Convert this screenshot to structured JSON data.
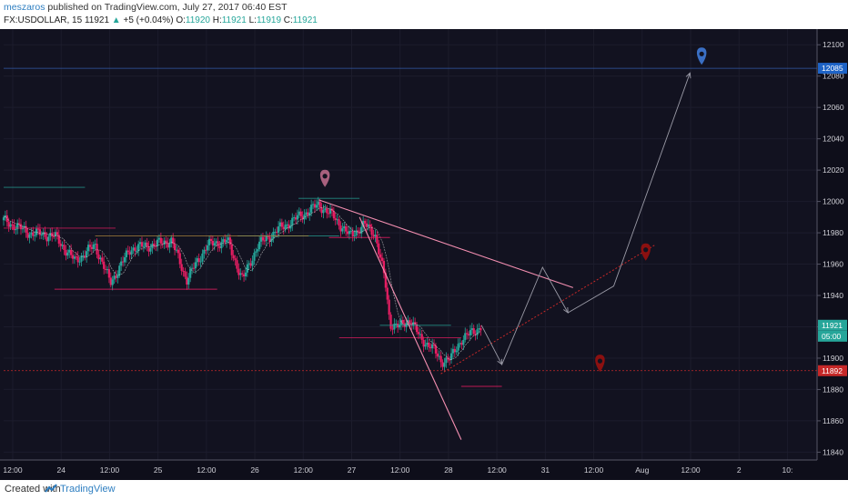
{
  "header": {
    "username": "meszaros",
    "published_text": " published on TradingView.com, July 27, 2017 06:40 EST",
    "symbol": "FX:USDOLLAR, 15",
    "last": "11921",
    "change_arrow": "▲",
    "change": "+5 (+0.04%)",
    "open_label": "O:",
    "open": "11920",
    "high_label": "H:",
    "high": "11921",
    "low_label": "L:",
    "low": "11919",
    "close_label": "C:",
    "close": "11921"
  },
  "footer": {
    "created_with": "Created with",
    "brand": "TradingView"
  },
  "colors": {
    "background": "#121220",
    "grid": "#1c1c2c",
    "candle_up": "#26a69a",
    "candle_down": "#e91e63",
    "triangle_line": "#f48fb1",
    "dotted_red": "#c62828",
    "price_badge_current": "#26a69a",
    "price_badge_support": "#c62828",
    "price_badge_target": "#1e63c6",
    "marker_blue": "#3a6fc4",
    "marker_red": "#8b1010",
    "marker_pink": "#a8607e"
  },
  "chart_data": {
    "type": "candlestick",
    "symbol": "FX:USDOLLAR",
    "interval": "15",
    "ylim": [
      11835,
      12110
    ],
    "yticks": [
      11840,
      11860,
      11880,
      11900,
      11920,
      11940,
      11960,
      11980,
      12000,
      12020,
      12040,
      12060,
      12080,
      12100
    ],
    "x_tick_labels": [
      "12:00",
      "24",
      "12:00",
      "25",
      "12:00",
      "26",
      "12:00",
      "27",
      "12:00",
      "28",
      "12:00",
      "31",
      "12:00",
      "Aug",
      "12:00",
      "2",
      "10:"
    ],
    "price_path": [
      [
        0,
        11988
      ],
      [
        5,
        11980
      ],
      [
        10,
        11978
      ],
      [
        14,
        11962
      ],
      [
        18,
        11972
      ],
      [
        21,
        11948
      ],
      [
        25,
        11970
      ],
      [
        29,
        11972
      ],
      [
        33,
        11975
      ],
      [
        36,
        11950
      ],
      [
        40,
        11972
      ],
      [
        44,
        11975
      ],
      [
        47,
        11950
      ],
      [
        50,
        11972
      ],
      [
        54,
        11982
      ],
      [
        58,
        11990
      ],
      [
        62,
        11998
      ],
      [
        65,
        11990
      ],
      [
        68,
        11978
      ],
      [
        71,
        11985
      ],
      [
        73,
        11980
      ],
      [
        75,
        11950
      ],
      [
        76,
        11922
      ],
      [
        78,
        11920
      ],
      [
        80,
        11925
      ],
      [
        82,
        11912
      ],
      [
        84,
        11908
      ],
      [
        86,
        11898
      ],
      [
        88,
        11900
      ],
      [
        90,
        11912
      ],
      [
        93,
        11918
      ],
      [
        94,
        11921
      ]
    ],
    "current_price": 11921,
    "countdown": "05:00",
    "target_level": 12085,
    "support_level": 11892,
    "forecast_path": [
      [
        94,
        11921
      ],
      [
        98,
        11896
      ],
      [
        106,
        11958
      ],
      [
        111,
        11929
      ],
      [
        120,
        11946
      ],
      [
        135,
        12082
      ]
    ],
    "badges": [
      {
        "label": "12085",
        "price": 12085,
        "color": "#1e63c6"
      },
      {
        "label": "11921",
        "price": 11921,
        "color": "#26a69a"
      },
      {
        "label": "05:00",
        "price": 11914,
        "color": "#26a69a"
      },
      {
        "label": "11892",
        "price": 11892,
        "color": "#c62828"
      }
    ]
  }
}
